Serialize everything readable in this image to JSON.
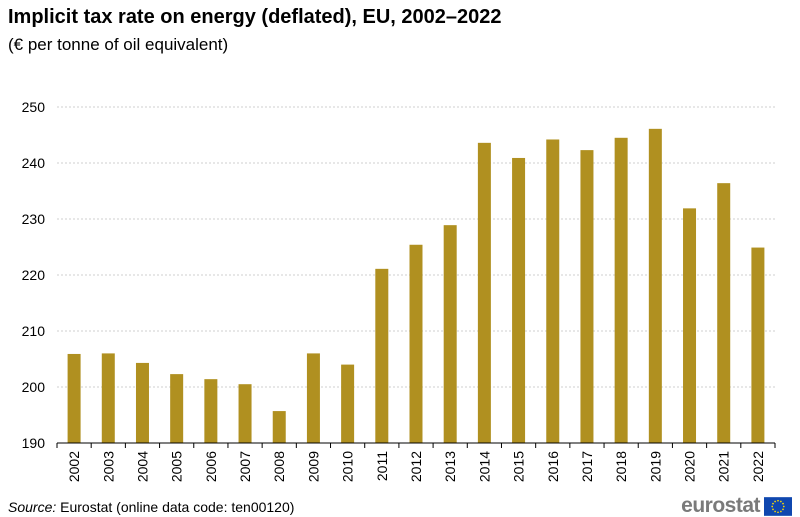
{
  "chart_data": {
    "type": "bar",
    "title": "Implicit tax rate on energy (deflated), EU, 2002–2022",
    "subtitle": "(€ per tonne of oil equivalent)",
    "xlabel": "",
    "ylabel": "",
    "ylim": [
      190,
      250
    ],
    "yticks": [
      190,
      200,
      210,
      220,
      230,
      240,
      250
    ],
    "grid": true,
    "bar_color": "#b09020",
    "categories": [
      "2002",
      "2003",
      "2004",
      "2005",
      "2006",
      "2007",
      "2008",
      "2009",
      "2010",
      "2011",
      "2012",
      "2013",
      "2014",
      "2015",
      "2016",
      "2017",
      "2018",
      "2019",
      "2020",
      "2021",
      "2022"
    ],
    "values": [
      205.9,
      206.0,
      204.3,
      202.3,
      201.4,
      200.5,
      195.7,
      206.0,
      204.0,
      221.1,
      225.4,
      228.9,
      243.6,
      240.9,
      244.2,
      242.3,
      244.5,
      246.1,
      231.9,
      236.4,
      224.9
    ]
  },
  "footer": {
    "source_label": "Source:",
    "source_text": " Eurostat (online data code: ten00120)",
    "logo_text": "eurostat"
  },
  "colors": {
    "bar": "#b09020",
    "grid": "#cfcfcf",
    "flag_blue": "#0f47af",
    "flag_star": "#ffdd00"
  }
}
